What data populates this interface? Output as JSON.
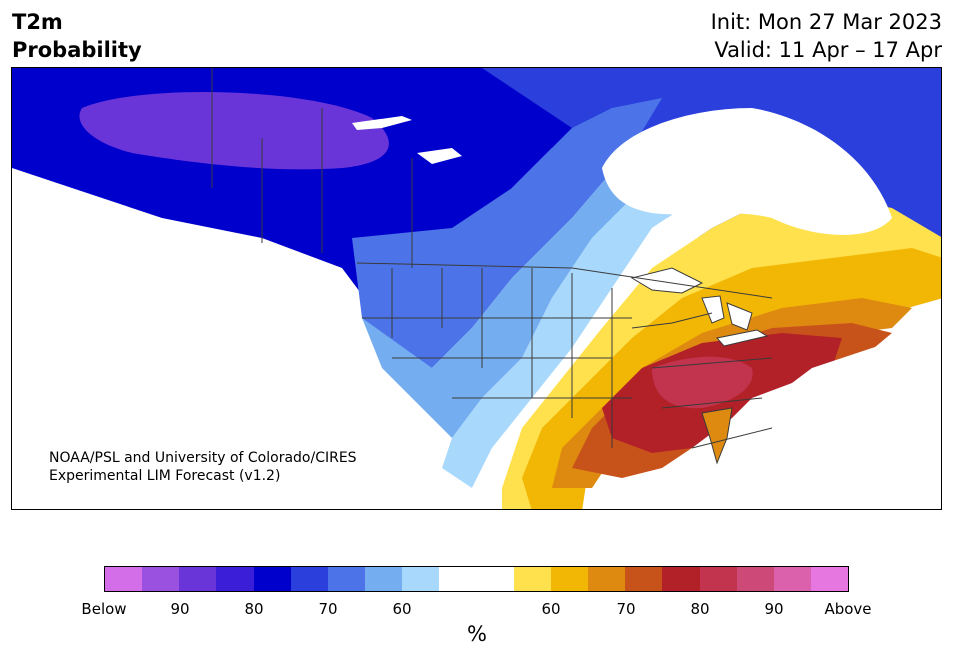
{
  "header": {
    "title_line1": "T2m",
    "title_line2": "Probability",
    "init": "Init: Mon 27 Mar 2023",
    "valid": "Valid: 11 Apr – 17 Apr"
  },
  "credit": {
    "line1": "NOAA/PSL and University of Colorado/CIRES",
    "line2": "Experimental LIM Forecast (v1.2)"
  },
  "colorbar": {
    "colors": [
      "#d46ee8",
      "#9b51e0",
      "#6a35d8",
      "#3a1ed8",
      "#0000cc",
      "#2a3fdc",
      "#4c74e8",
      "#74adf0",
      "#a8d8fc",
      "#ffffff",
      "#ffffff",
      "#ffe14d",
      "#f2b705",
      "#de8a10",
      "#c8531a",
      "#b22028",
      "#c2344e",
      "#cd4a78",
      "#db61ad",
      "#e676e0"
    ],
    "ticks": [
      "Below",
      "90",
      "80",
      "70",
      "60",
      "60",
      "70",
      "80",
      "90",
      "Above"
    ],
    "unit": "%"
  },
  "map": {
    "ocean_color": "#ffffff",
    "border_color": "#3a3a3a",
    "regions": [
      {
        "name": "canada-north-blue",
        "fill": "#2a3fdc"
      },
      {
        "name": "alaska-yukon-purple",
        "fill": "#6a35d8"
      },
      {
        "name": "western-canada-dark-blue",
        "fill": "#0000cc"
      },
      {
        "name": "pacific-northwest-blue",
        "fill": "#4c74e8"
      },
      {
        "name": "western-us-light-blue",
        "fill": "#74adf0"
      },
      {
        "name": "plains-pale-blue",
        "fill": "#a8d8fc"
      },
      {
        "name": "central-white",
        "fill": "#ffffff"
      },
      {
        "name": "eastern-yellow",
        "fill": "#ffe14d"
      },
      {
        "name": "eastern-gold",
        "fill": "#f2b705"
      },
      {
        "name": "eastern-orange",
        "fill": "#de8a10"
      },
      {
        "name": "eastern-burnt-orange",
        "fill": "#c8531a"
      },
      {
        "name": "eastern-red",
        "fill": "#b22028"
      },
      {
        "name": "ohio-valley-crimson",
        "fill": "#c2344e"
      }
    ]
  }
}
